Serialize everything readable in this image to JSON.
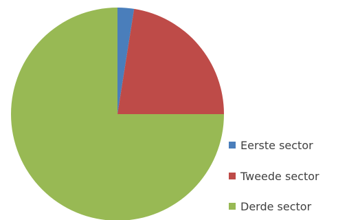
{
  "chart_data": {
    "type": "pie",
    "categories": [
      "Eerste sector",
      "Tweede sector",
      "Derde sector"
    ],
    "values": [
      2.5,
      22.5,
      75
    ],
    "colors": [
      "#4a7ebb",
      "#be4b48",
      "#98b954"
    ],
    "legend_position": "right-bottom",
    "title": ""
  }
}
